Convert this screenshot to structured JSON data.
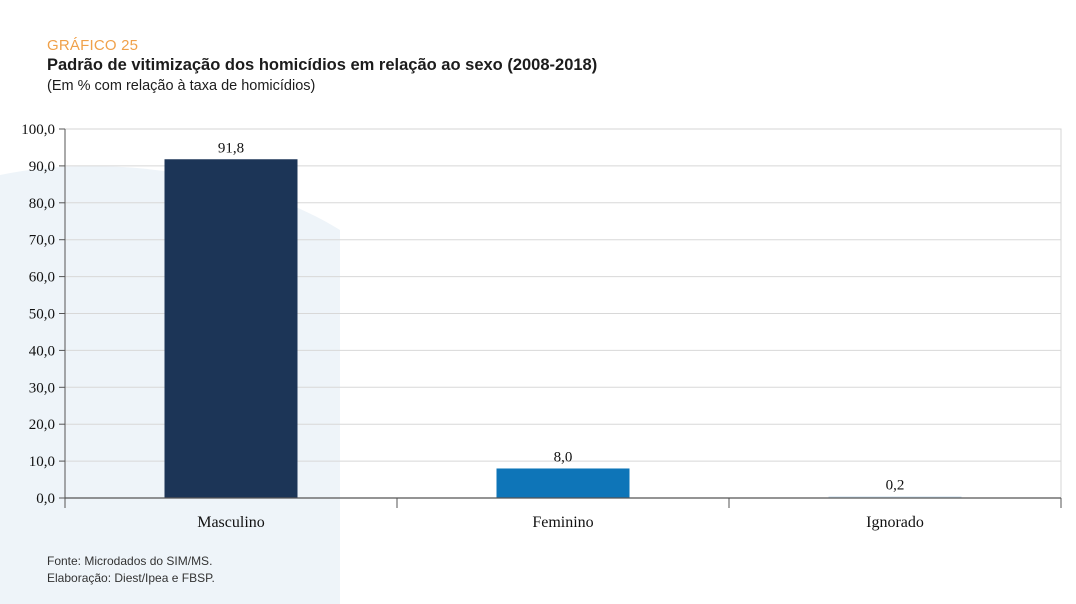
{
  "header": {
    "label": "GRÁFICO 25",
    "title": "Padrão de vitimização dos homicídios em relação ao sexo (2008-2018)",
    "subtitle": "(Em % com relação à taxa de homicídios)"
  },
  "chart_data": {
    "type": "bar",
    "categories": [
      "Masculino",
      "Feminino",
      "Ignorado"
    ],
    "values": [
      91.8,
      8.0,
      0.2
    ],
    "value_labels": [
      "91,8",
      "8,0",
      "0,2"
    ],
    "ylim": [
      0,
      100
    ],
    "yticks": [
      "0,0",
      "10,0",
      "20,0",
      "30,0",
      "40,0",
      "50,0",
      "60,0",
      "70,0",
      "80,0",
      "90,0",
      "100,0"
    ],
    "grid": true,
    "colors": [
      "#1c3557",
      "#0e75b8",
      "#c9dcec"
    ]
  },
  "footer": {
    "source": "Fonte: Microdados do SIM/MS.",
    "credit": "Elaboração: Diest/Ipea e FBSP."
  }
}
